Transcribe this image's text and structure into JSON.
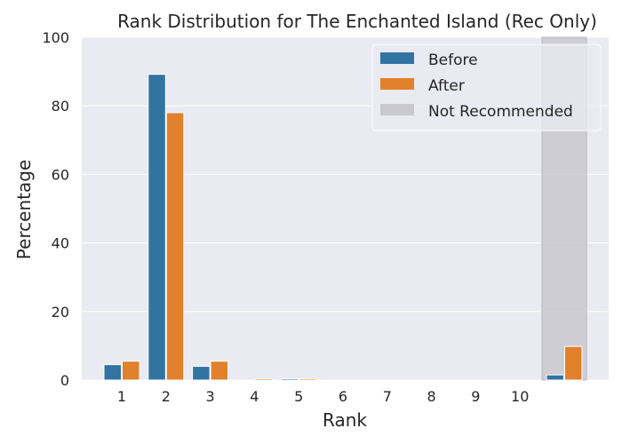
{
  "chart_data": {
    "type": "bar",
    "title": "Rank Distribution for The Enchanted Island (Rec Only)",
    "xlabel": "Rank",
    "ylabel": "Percentage",
    "ylim": [
      0,
      100
    ],
    "yticks": [
      "0",
      "20",
      "40",
      "60",
      "80",
      "100"
    ],
    "categories": [
      "1",
      "2",
      "3",
      "4",
      "5",
      "6",
      "7",
      "8",
      "9",
      "10",
      ""
    ],
    "series": [
      {
        "name": "Before",
        "color": "#3274a1",
        "values": [
          4.5,
          89.2,
          4.0,
          0.0,
          0.4,
          0.0,
          0.0,
          0.0,
          0.0,
          0.0,
          1.5
        ]
      },
      {
        "name": "After",
        "color": "#e1812c",
        "values": [
          5.5,
          78.0,
          5.5,
          0.4,
          0.4,
          0.0,
          0.0,
          0.0,
          0.0,
          0.0,
          9.8
        ]
      }
    ],
    "shaded_region": {
      "name": "Not Recommended",
      "color": "#c9c8cf",
      "category_index": 10
    },
    "legend_position": "top-right",
    "grid": true,
    "background": "#eaeaf2"
  }
}
